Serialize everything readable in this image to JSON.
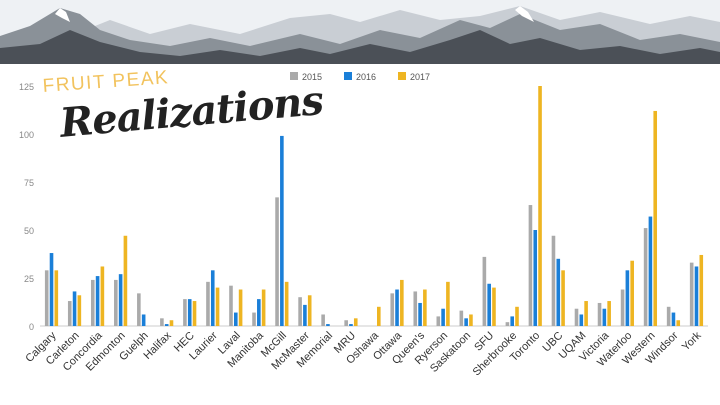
{
  "title": {
    "line1": "FRUIT PEAK",
    "line2": "Realizations"
  },
  "chart_data": {
    "type": "bar",
    "title": "FRUIT PEAK Realizations",
    "xlabel": "",
    "ylabel": "",
    "ylim": [
      0,
      125
    ],
    "yticks": [
      0,
      25,
      50,
      75,
      100,
      125
    ],
    "grid": false,
    "legend_position": "top-center",
    "categories": [
      "Calgary",
      "Carleton",
      "Concordia",
      "Edmonton",
      "Guelph",
      "Halifax",
      "HEC",
      "Laurier",
      "Laval",
      "Manitoba",
      "McGill",
      "McMaster",
      "Memorial",
      "MRU",
      "Oshawa",
      "Ottawa",
      "Queen's",
      "Ryerson",
      "Saskatoon",
      "SFU",
      "Sherbrooke",
      "Toronto",
      "UBC",
      "UQAM",
      "Victoria",
      "Waterloo",
      "Western",
      "Windsor",
      "York"
    ],
    "series": [
      {
        "name": "2015",
        "color": "#aaaaaa",
        "values": [
          29,
          13,
          24,
          24,
          17,
          4,
          14,
          23,
          21,
          7,
          67,
          15,
          6,
          3,
          0,
          17,
          18,
          5,
          8,
          36,
          2,
          63,
          47,
          9,
          12,
          19,
          51,
          10,
          33
        ]
      },
      {
        "name": "2016",
        "color": "#1a7fd8",
        "values": [
          38,
          18,
          26,
          27,
          6,
          1,
          14,
          29,
          7,
          14,
          99,
          11,
          1,
          1,
          0,
          19,
          12,
          9,
          4,
          22,
          5,
          50,
          35,
          6,
          9,
          29,
          57,
          7,
          31
        ]
      },
      {
        "name": "2017",
        "color": "#eeb522",
        "values": [
          29,
          16,
          31,
          47,
          0,
          3,
          13,
          20,
          19,
          19,
          23,
          16,
          0,
          4,
          10,
          24,
          19,
          23,
          6,
          20,
          10,
          125,
          29,
          13,
          13,
          34,
          112,
          3,
          37
        ]
      }
    ]
  }
}
